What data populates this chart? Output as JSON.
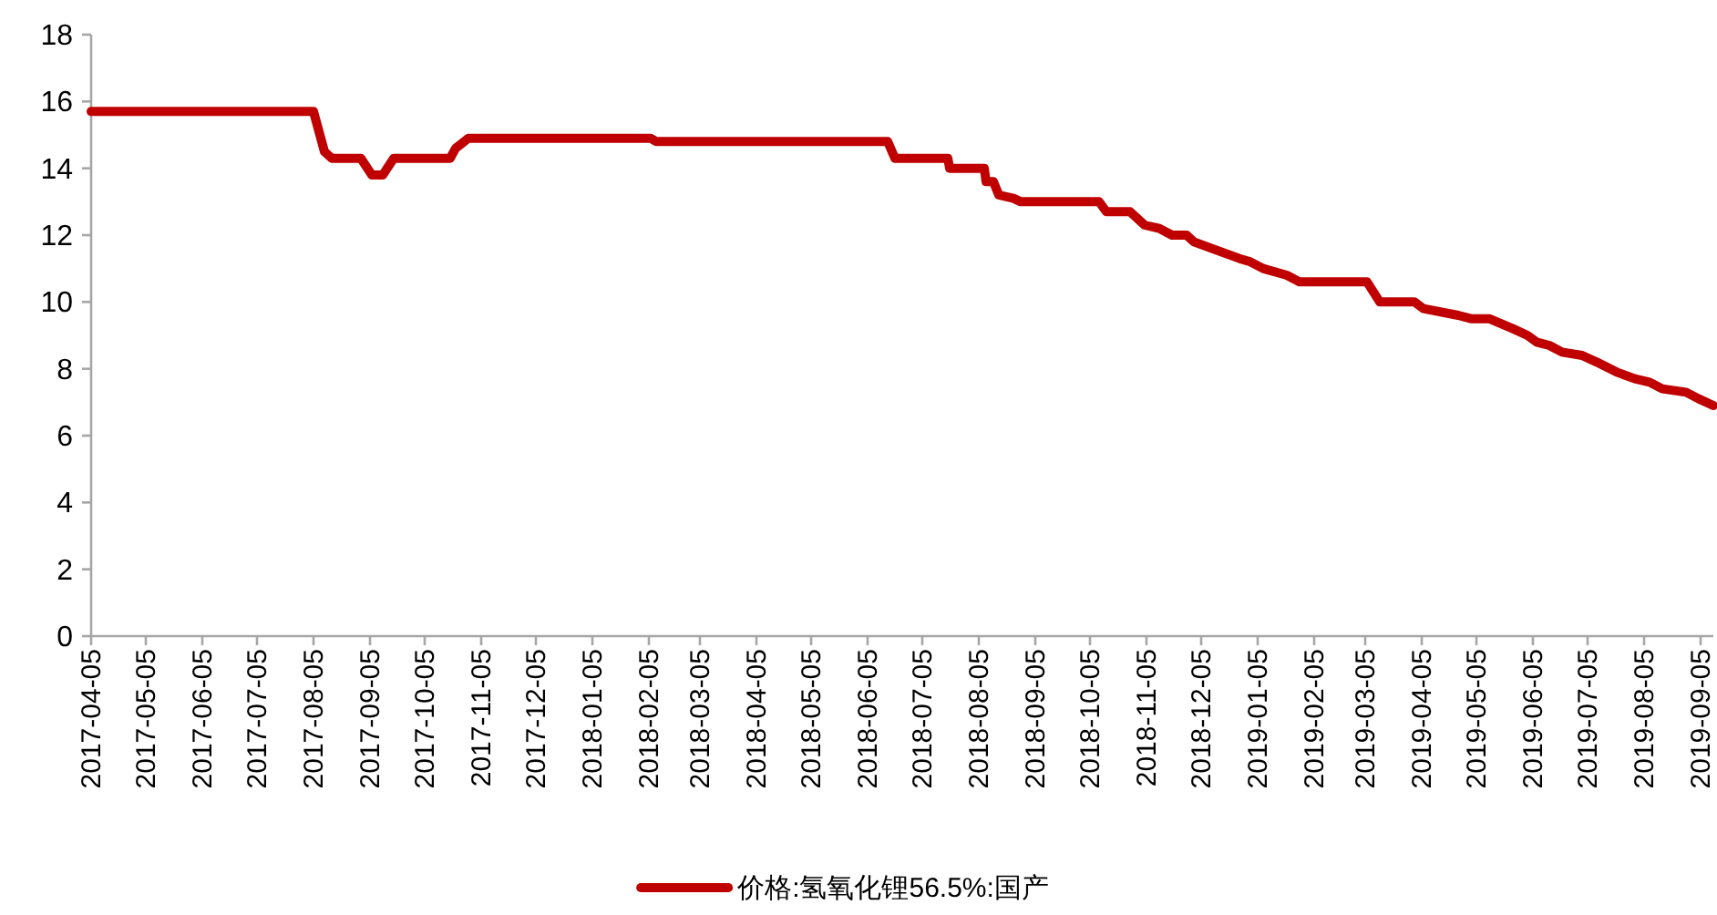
{
  "chart_data": {
    "type": "line",
    "legend": "bottom",
    "marker": "none",
    "grid": false,
    "xlim": [
      "2017-04-05",
      "2019-09-12"
    ],
    "xticks": [
      "2017-04-05",
      "2017-05-05",
      "2017-06-05",
      "2017-07-05",
      "2017-08-05",
      "2017-09-05",
      "2017-10-05",
      "2017-11-05",
      "2017-12-05",
      "2018-01-05",
      "2018-02-05",
      "2018-03-05",
      "2018-04-05",
      "2018-05-05",
      "2018-06-05",
      "2018-07-05",
      "2018-08-05",
      "2018-09-05",
      "2018-10-05",
      "2018-11-05",
      "2018-12-05",
      "2019-01-05",
      "2019-02-05",
      "2019-03-05",
      "2019-04-05",
      "2019-05-05",
      "2019-06-05",
      "2019-07-05",
      "2019-08-05",
      "2019-09-05"
    ],
    "ylim": [
      0,
      18
    ],
    "yticks": [
      0,
      2,
      4,
      6,
      8,
      10,
      12,
      14,
      16,
      18
    ],
    "x": [
      "2017-04-05",
      "2017-08-05",
      "2017-08-11",
      "2017-08-15",
      "2017-08-31",
      "2017-09-06",
      "2017-09-12",
      "2017-09-18",
      "2017-10-19",
      "2017-10-22",
      "2017-10-29",
      "2018-02-06",
      "2018-02-09",
      "2018-06-16",
      "2018-06-20",
      "2018-07-19",
      "2018-07-20",
      "2018-08-08",
      "2018-08-09",
      "2018-08-13",
      "2018-08-16",
      "2018-08-24",
      "2018-08-28",
      "2018-10-10",
      "2018-10-14",
      "2018-10-27",
      "2018-11-04",
      "2018-11-12",
      "2018-11-19",
      "2018-11-27",
      "2018-12-01",
      "2018-12-16",
      "2018-12-26",
      "2019-01-01",
      "2019-01-08",
      "2019-01-21",
      "2019-01-28",
      "2019-03-06",
      "2019-03-13",
      "2019-04-01",
      "2019-04-06",
      "2019-04-25",
      "2019-05-02",
      "2019-05-12",
      "2019-05-25",
      "2019-06-02",
      "2019-06-07",
      "2019-06-14",
      "2019-06-21",
      "2019-07-02",
      "2019-07-10",
      "2019-07-21",
      "2019-07-31",
      "2019-08-08",
      "2019-08-15",
      "2019-08-28",
      "2019-09-04",
      "2019-09-12"
    ],
    "series": [
      {
        "name": "价格:氢氧化锂56.5%:国产",
        "color": "#c00000",
        "line_style": "solid",
        "values": [
          15.7,
          15.7,
          14.5,
          14.3,
          14.3,
          13.8,
          13.8,
          14.3,
          14.3,
          14.6,
          14.9,
          14.9,
          14.8,
          14.8,
          14.3,
          14.3,
          14.0,
          14.0,
          13.6,
          13.6,
          13.2,
          13.1,
          13.0,
          13.0,
          12.7,
          12.7,
          12.3,
          12.2,
          12.0,
          12.0,
          11.8,
          11.5,
          11.3,
          11.2,
          11.0,
          10.8,
          10.6,
          10.6,
          10.0,
          10.0,
          9.8,
          9.6,
          9.5,
          9.5,
          9.2,
          9.0,
          8.8,
          8.7,
          8.5,
          8.4,
          8.2,
          7.9,
          7.7,
          7.6,
          7.4,
          7.3,
          7.1,
          6.9
        ]
      }
    ]
  }
}
